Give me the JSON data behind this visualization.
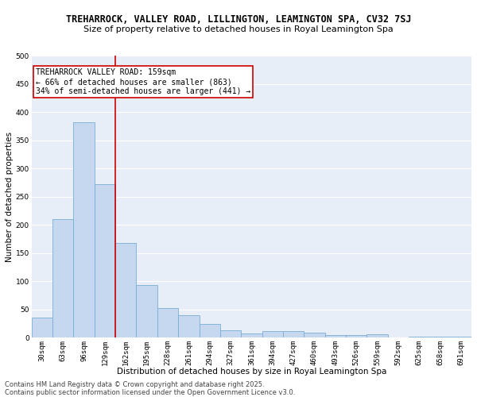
{
  "title": "TREHARROCK, VALLEY ROAD, LILLINGTON, LEAMINGTON SPA, CV32 7SJ",
  "subtitle": "Size of property relative to detached houses in Royal Leamington Spa",
  "xlabel": "Distribution of detached houses by size in Royal Leamington Spa",
  "ylabel": "Number of detached properties",
  "categories": [
    "30sqm",
    "63sqm",
    "96sqm",
    "129sqm",
    "162sqm",
    "195sqm",
    "228sqm",
    "261sqm",
    "294sqm",
    "327sqm",
    "361sqm",
    "394sqm",
    "427sqm",
    "460sqm",
    "493sqm",
    "526sqm",
    "559sqm",
    "592sqm",
    "625sqm",
    "658sqm",
    "691sqm"
  ],
  "values": [
    35,
    210,
    382,
    273,
    168,
    93,
    52,
    40,
    24,
    13,
    8,
    11,
    11,
    9,
    4,
    4,
    6,
    1,
    2,
    2,
    2
  ],
  "bar_color": "#c5d8f0",
  "bar_edge_color": "#7aadd4",
  "annotation_text": "TREHARROCK VALLEY ROAD: 159sqm\n← 66% of detached houses are smaller (863)\n34% of semi-detached houses are larger (441) →",
  "annotation_box_color": "#ffffff",
  "annotation_box_edge_color": "#cc0000",
  "ylim": [
    0,
    500
  ],
  "yticks": [
    0,
    50,
    100,
    150,
    200,
    250,
    300,
    350,
    400,
    450,
    500
  ],
  "vline_color": "#cc0000",
  "footer": "Contains HM Land Registry data © Crown copyright and database right 2025.\nContains public sector information licensed under the Open Government Licence v3.0.",
  "background_color": "#e8eef8",
  "grid_color": "#ffffff",
  "fig_bg_color": "#ffffff",
  "title_fontsize": 8.5,
  "subtitle_fontsize": 8,
  "axis_label_fontsize": 7.5,
  "tick_fontsize": 6.5,
  "annotation_fontsize": 7,
  "footer_fontsize": 6
}
